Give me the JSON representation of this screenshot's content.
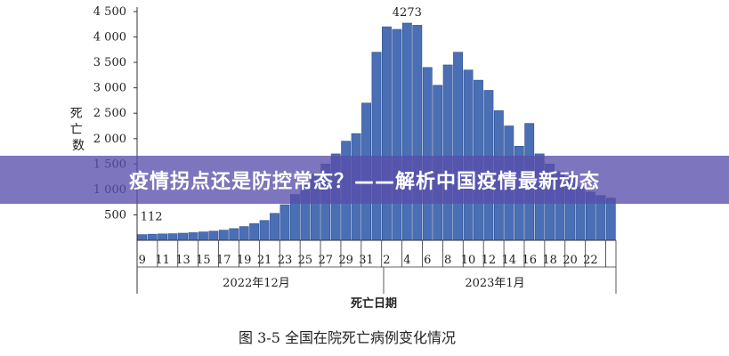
{
  "banner": {
    "title": "疫情拐点还是防控常态？——解析中国疫情最新动态"
  },
  "caption": "图 3-5  全国在院死亡病例变化情况",
  "chart_data": {
    "type": "bar",
    "xlabel": "死亡日期",
    "ylabel": "死亡数",
    "ylim": [
      0,
      4500
    ],
    "yticks": [
      500,
      1000,
      1500,
      2000,
      2500,
      3000,
      3500,
      4000,
      4500
    ],
    "ytick_labels": [
      "500",
      "1 000",
      "1 500",
      "2 000",
      "2 500",
      "3 000",
      "3 500",
      "4 000",
      "4 500"
    ],
    "months": [
      "2022年12月",
      "2023年1月"
    ],
    "categories": [
      "2022-12-08",
      "2022-12-09",
      "2022-12-10",
      "2022-12-11",
      "2022-12-12",
      "2022-12-13",
      "2022-12-14",
      "2022-12-15",
      "2022-12-16",
      "2022-12-17",
      "2022-12-18",
      "2022-12-19",
      "2022-12-20",
      "2022-12-21",
      "2022-12-22",
      "2022-12-23",
      "2022-12-24",
      "2022-12-25",
      "2022-12-26",
      "2022-12-27",
      "2022-12-28",
      "2022-12-29",
      "2022-12-30",
      "2022-12-31",
      "2023-01-01",
      "2023-01-02",
      "2023-01-03",
      "2023-01-04",
      "2023-01-05",
      "2023-01-06",
      "2023-01-07",
      "2023-01-08",
      "2023-01-09",
      "2023-01-10",
      "2023-01-11",
      "2023-01-12",
      "2023-01-13",
      "2023-01-14",
      "2023-01-15",
      "2023-01-16",
      "2023-01-17",
      "2023-01-18",
      "2023-01-19",
      "2023-01-20",
      "2023-01-21",
      "2023-01-22",
      "2023-01-23"
    ],
    "values": [
      112,
      120,
      125,
      130,
      140,
      150,
      165,
      180,
      200,
      230,
      270,
      330,
      390,
      530,
      700,
      900,
      1100,
      1300,
      1500,
      1700,
      1950,
      2100,
      2700,
      3700,
      4200,
      4150,
      4273,
      4230,
      3400,
      3050,
      3450,
      3700,
      3350,
      3150,
      2950,
      2550,
      2250,
      1850,
      2300,
      1700,
      1500,
      1350,
      1250,
      1050,
      950,
      880,
      830
    ],
    "xtick_labels": [
      "9",
      "11",
      "13",
      "15",
      "17",
      "19",
      "21",
      "23",
      "25",
      "27",
      "29",
      "31",
      "2",
      "4",
      "6",
      "8",
      "10",
      "12",
      "14",
      "16",
      "18",
      "20",
      "22"
    ],
    "data_labels": [
      {
        "index": 0,
        "text": "112"
      },
      {
        "index": 26,
        "text": "4273"
      }
    ]
  }
}
